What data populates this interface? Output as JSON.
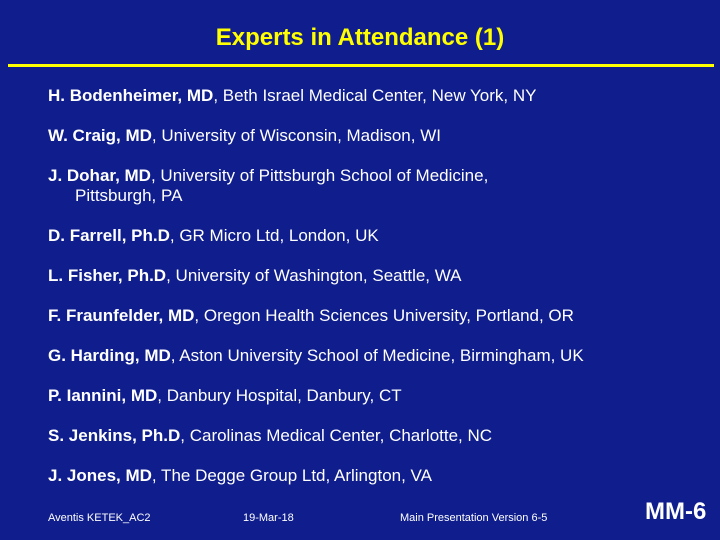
{
  "title": "Experts in Attendance (1)",
  "experts": [
    {
      "name": "H. Bodenheimer, MD",
      "affiliation": ", Beth Israel Medical Center, New York, NY",
      "continuation": ""
    },
    {
      "name": "W. Craig, MD",
      "affiliation": ", University of Wisconsin, Madison, WI",
      "continuation": ""
    },
    {
      "name": "J. Dohar, MD",
      "affiliation": ", University of Pittsburgh School of Medicine,",
      "continuation": "Pittsburgh, PA"
    },
    {
      "name": "D. Farrell, Ph.D",
      "affiliation": ", GR Micro Ltd, London, UK",
      "continuation": ""
    },
    {
      "name": "L. Fisher, Ph.D",
      "affiliation": ", University of Washington, Seattle, WA",
      "continuation": ""
    },
    {
      "name": "F. Fraunfelder, MD",
      "affiliation": ", Oregon Health Sciences University, Portland, OR",
      "continuation": ""
    },
    {
      "name": "G. Harding, MD",
      "affiliation": ", Aston University School of Medicine, Birmingham, UK",
      "continuation": ""
    },
    {
      "name": "P. Iannini, MD",
      "affiliation": ", Danbury Hospital, Danbury, CT",
      "continuation": ""
    },
    {
      "name": "S. Jenkins, Ph.D",
      "affiliation": ", Carolinas Medical Center, Charlotte, NC",
      "continuation": ""
    },
    {
      "name": "J. Jones, MD",
      "affiliation": ", The Degge Group Ltd, Arlington, VA",
      "continuation": ""
    }
  ],
  "footer": {
    "left": "Aventis KETEK_AC2",
    "date": "19-Mar-18",
    "version": "Main Presentation Version 6-5",
    "slide_number": "MM-6"
  },
  "colors": {
    "background": "#0f1e8c",
    "title": "#ffff00",
    "rule": "#ffff00",
    "text": "#ffffff"
  }
}
